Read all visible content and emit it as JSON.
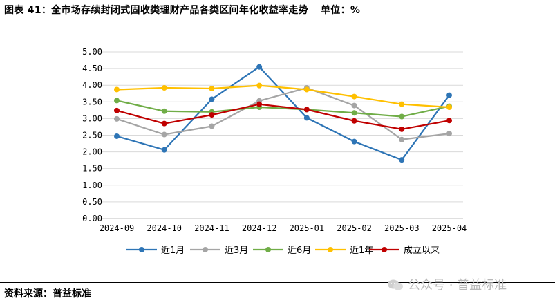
{
  "header": {
    "title": "图表 41：全市场存续封闭式固收类理财产品各类区间年化收益率走势",
    "unit": "单位：%"
  },
  "footer": {
    "source": "资料来源：普益标准",
    "watermark": "公众号 · 普益标准"
  },
  "chart_data": {
    "type": "line",
    "title": "",
    "xlabel": "",
    "ylabel": "",
    "categories": [
      "2024-09",
      "2024-10",
      "2024-11",
      "2024-12",
      "2025-01",
      "2025-02",
      "2025-03",
      "2025-04"
    ],
    "ylim": [
      0,
      5
    ],
    "yticks": [
      "0.00",
      "0.50",
      "1.00",
      "1.50",
      "2.00",
      "2.50",
      "3.00",
      "3.50",
      "4.00",
      "4.50",
      "5.00"
    ],
    "grid": true,
    "legend_position": "bottom",
    "series": [
      {
        "name": "近1月",
        "color": "#2e75b6",
        "values": [
          2.47,
          2.06,
          3.58,
          4.55,
          3.02,
          2.31,
          1.76,
          3.7
        ]
      },
      {
        "name": "近3月",
        "color": "#a5a5a5",
        "values": [
          2.99,
          2.52,
          2.77,
          3.53,
          3.92,
          3.39,
          2.37,
          2.55
        ]
      },
      {
        "name": "近6月",
        "color": "#70ad47",
        "values": [
          3.54,
          3.22,
          3.2,
          3.34,
          3.27,
          3.17,
          3.06,
          3.37
        ]
      },
      {
        "name": "近1年",
        "color": "#ffc000",
        "values": [
          3.87,
          3.92,
          3.9,
          3.99,
          3.87,
          3.66,
          3.43,
          3.34
        ]
      },
      {
        "name": "成立以来",
        "color": "#c00000",
        "values": [
          3.24,
          2.85,
          3.11,
          3.43,
          3.27,
          2.93,
          2.68,
          2.94
        ]
      }
    ]
  }
}
